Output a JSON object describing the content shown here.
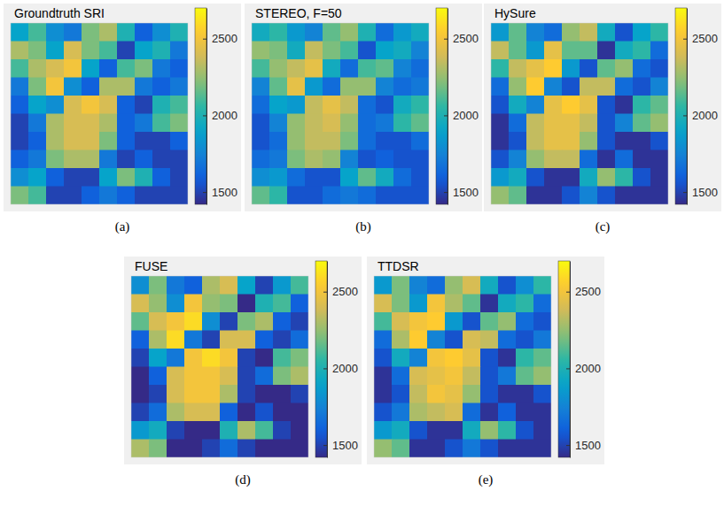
{
  "chart_data": [
    {
      "type": "heatmap",
      "title": "Groundtruth SRI",
      "caption": "(a)",
      "tick_labels": false,
      "colorbar": {
        "range": [
          1420,
          2700
        ],
        "ticks": [
          1500,
          2000,
          2500
        ]
      },
      "z": [
        [
          1900,
          2100,
          1800,
          1700,
          2200,
          2300,
          2000,
          1600,
          1800,
          2000
        ],
        [
          2300,
          2200,
          1900,
          2400,
          2200,
          2100,
          1500,
          1900,
          2000,
          1700
        ],
        [
          2100,
          2300,
          2400,
          2500,
          1900,
          1600,
          2100,
          2200,
          1700,
          1600
        ],
        [
          1700,
          2200,
          2500,
          1800,
          1600,
          2300,
          2300,
          1700,
          1600,
          1700
        ],
        [
          1600,
          1900,
          1800,
          2400,
          2500,
          2400,
          1600,
          1500,
          2000,
          2100
        ],
        [
          1500,
          1700,
          2300,
          2400,
          2400,
          2300,
          1600,
          1700,
          2100,
          2200
        ],
        [
          1500,
          1600,
          2300,
          2400,
          2400,
          2200,
          1600,
          1500,
          1500,
          1600
        ],
        [
          1600,
          1700,
          2200,
          2300,
          2300,
          1700,
          1500,
          1600,
          1500,
          1500
        ],
        [
          1800,
          1900,
          1600,
          1500,
          1500,
          1900,
          2200,
          2000,
          1600,
          1500
        ],
        [
          2200,
          2100,
          1500,
          1500,
          1600,
          1700,
          1600,
          1500,
          1500,
          1500
        ]
      ]
    },
    {
      "type": "heatmap",
      "title": "STEREO, F=50",
      "caption": "(b)",
      "tick_labels": false,
      "colorbar": {
        "range": [
          1420,
          2700
        ],
        "ticks": [
          1500,
          2000,
          2500
        ]
      },
      "z": [
        [
          1950,
          2050,
          1850,
          1750,
          2150,
          2250,
          2000,
          1650,
          1850,
          1950
        ],
        [
          2250,
          2200,
          1950,
          2350,
          2200,
          2100,
          1550,
          1900,
          1950,
          1750
        ],
        [
          2100,
          2250,
          2350,
          2450,
          1950,
          1650,
          2100,
          2150,
          1750,
          1650
        ],
        [
          1750,
          2150,
          2450,
          1850,
          1650,
          2250,
          2250,
          1750,
          1650,
          1700
        ],
        [
          1650,
          1900,
          1850,
          2350,
          2450,
          2350,
          1650,
          1550,
          1950,
          2050
        ],
        [
          1550,
          1750,
          2250,
          2350,
          2400,
          2250,
          1650,
          1700,
          2050,
          2150
        ],
        [
          1550,
          1650,
          2250,
          2350,
          2350,
          2200,
          1650,
          1550,
          1550,
          1650
        ],
        [
          1650,
          1700,
          2200,
          2300,
          2250,
          1750,
          1550,
          1600,
          1550,
          1550
        ],
        [
          1800,
          1850,
          1650,
          1550,
          1550,
          1900,
          2150,
          1950,
          1650,
          1550
        ],
        [
          2150,
          2050,
          1550,
          1550,
          1650,
          1700,
          1650,
          1550,
          1550,
          1550
        ]
      ]
    },
    {
      "type": "heatmap",
      "title": "HySure",
      "caption": "(c)",
      "tick_labels": false,
      "colorbar": {
        "range": [
          1420,
          2700
        ],
        "ticks": [
          1500,
          2000,
          2500
        ]
      },
      "z": [
        [
          1850,
          2150,
          1750,
          1650,
          2250,
          2350,
          1950,
          1550,
          1900,
          2050
        ],
        [
          2350,
          2150,
          1850,
          2450,
          2150,
          2150,
          1450,
          1950,
          2050,
          1650
        ],
        [
          2050,
          2350,
          2450,
          2550,
          1850,
          1550,
          2150,
          2250,
          1650,
          1550
        ],
        [
          1650,
          2250,
          2550,
          1750,
          1550,
          2350,
          2350,
          1650,
          1550,
          1750
        ],
        [
          1550,
          1950,
          1750,
          2450,
          2550,
          2450,
          1550,
          1450,
          2050,
          2150
        ],
        [
          1450,
          1650,
          2350,
          2450,
          2450,
          2350,
          1550,
          1750,
          2150,
          2250
        ],
        [
          1450,
          1550,
          2350,
          2450,
          2450,
          2250,
          1550,
          1450,
          1450,
          1550
        ],
        [
          1550,
          1750,
          2250,
          2350,
          2350,
          1650,
          1450,
          1650,
          1450,
          1450
        ],
        [
          1850,
          1950,
          1550,
          1450,
          1450,
          1950,
          2250,
          2050,
          1550,
          1450
        ],
        [
          2250,
          2150,
          1450,
          1450,
          1550,
          1750,
          1550,
          1450,
          1450,
          1450
        ]
      ]
    },
    {
      "type": "heatmap",
      "title": "FUSE",
      "caption": "(d)",
      "tick_labels": false,
      "colorbar": {
        "range": [
          1420,
          2700
        ],
        "ticks": [
          1500,
          2000,
          2500
        ]
      },
      "z": [
        [
          1800,
          2200,
          1700,
          1600,
          2300,
          2400,
          1900,
          1500,
          1850,
          2100
        ],
        [
          2400,
          2250,
          1800,
          2500,
          2250,
          2200,
          1400,
          2000,
          2100,
          1600
        ],
        [
          2150,
          2400,
          2500,
          2600,
          1800,
          1500,
          2200,
          2300,
          1600,
          1500
        ],
        [
          1600,
          2300,
          2600,
          1700,
          1500,
          2400,
          2400,
          1600,
          1500,
          1650
        ],
        [
          1500,
          1900,
          1700,
          2500,
          2600,
          2500,
          1500,
          1400,
          2100,
          2200
        ],
        [
          1400,
          1600,
          2400,
          2500,
          2500,
          2400,
          1500,
          1650,
          2200,
          2300
        ],
        [
          1400,
          1500,
          2400,
          2500,
          2500,
          2300,
          1500,
          1400,
          1400,
          1500
        ],
        [
          1500,
          1650,
          2300,
          2400,
          2400,
          1600,
          1400,
          1550,
          1400,
          1400
        ],
        [
          1850,
          1950,
          1500,
          1400,
          1400,
          2000,
          2300,
          2100,
          1500,
          1400
        ],
        [
          2300,
          2200,
          1400,
          1400,
          1500,
          1650,
          1500,
          1400,
          1400,
          1400
        ]
      ]
    },
    {
      "type": "heatmap",
      "title": "TTDSR",
      "caption": "(e)",
      "tick_labels": false,
      "colorbar": {
        "range": [
          1420,
          2700
        ],
        "ticks": [
          1500,
          2000,
          2500
        ]
      },
      "z": [
        [
          1850,
          2200,
          1750,
          1650,
          2250,
          2400,
          1950,
          1550,
          1800,
          2050
        ],
        [
          2400,
          2200,
          1850,
          2500,
          2300,
          2150,
          1450,
          1950,
          2050,
          1650
        ],
        [
          2100,
          2400,
          2500,
          2550,
          1850,
          1550,
          2150,
          2250,
          1650,
          1550
        ],
        [
          1650,
          2300,
          2550,
          1750,
          1550,
          2400,
          2350,
          1650,
          1550,
          1700
        ],
        [
          1550,
          1950,
          1750,
          2500,
          2550,
          2450,
          1550,
          1450,
          2050,
          2150
        ],
        [
          1450,
          1650,
          2400,
          2450,
          2500,
          2350,
          1550,
          1700,
          2150,
          2250
        ],
        [
          1450,
          1550,
          2350,
          2500,
          2450,
          2250,
          1550,
          1450,
          1450,
          1550
        ],
        [
          1550,
          1700,
          2300,
          2350,
          2400,
          1650,
          1450,
          1600,
          1450,
          1450
        ],
        [
          1850,
          1950,
          1550,
          1450,
          1450,
          1950,
          2250,
          2050,
          1550,
          1450
        ],
        [
          2250,
          2150,
          1450,
          1450,
          1550,
          1700,
          1550,
          1450,
          1450,
          1450
        ]
      ]
    }
  ]
}
